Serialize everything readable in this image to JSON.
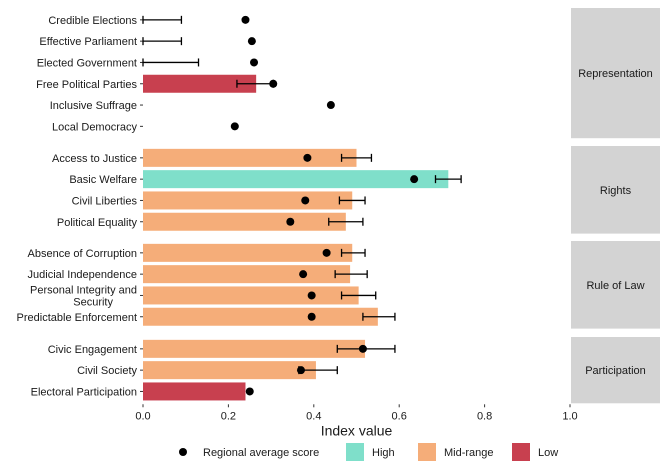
{
  "chart_data": {
    "type": "bar",
    "orientation": "horizontal",
    "xlabel": "Index value",
    "xlim": [
      0,
      1
    ],
    "xticks": [
      "0.0",
      "0.2",
      "0.4",
      "0.6",
      "0.8",
      "1.0"
    ],
    "grid": false,
    "legend": {
      "position": "bottom",
      "marker_label": "Regional average score",
      "fills": [
        {
          "label": "High",
          "color": "#7fdfca"
        },
        {
          "label": "Mid-range",
          "color": "#f5ad79"
        },
        {
          "label": "Low",
          "color": "#c8404f"
        }
      ]
    },
    "panels": [
      {
        "name": "Representation",
        "rows": [
          {
            "label": "Credible Elections",
            "value": null,
            "category": null,
            "err_low": 0.0,
            "err_high": 0.09,
            "regional_avg": 0.24
          },
          {
            "label": "Effective Parliament",
            "value": null,
            "category": null,
            "err_low": 0.0,
            "err_high": 0.09,
            "regional_avg": 0.255
          },
          {
            "label": "Elected Government",
            "value": null,
            "category": null,
            "err_low": 0.0,
            "err_high": 0.13,
            "regional_avg": 0.26
          },
          {
            "label": "Free Political Parties",
            "value": 0.265,
            "category": "Low",
            "err_low": 0.22,
            "err_high": 0.305,
            "regional_avg": 0.305
          },
          {
            "label": "Inclusive Suffrage",
            "value": null,
            "category": null,
            "err_low": null,
            "err_high": null,
            "regional_avg": 0.44
          },
          {
            "label": "Local Democracy",
            "value": null,
            "category": null,
            "err_low": null,
            "err_high": null,
            "regional_avg": 0.215
          }
        ]
      },
      {
        "name": "Rights",
        "rows": [
          {
            "label": "Access to Justice",
            "value": 0.5,
            "category": "Mid-range",
            "err_low": 0.465,
            "err_high": 0.535,
            "regional_avg": 0.385
          },
          {
            "label": "Basic Welfare",
            "value": 0.715,
            "category": "High",
            "err_low": 0.685,
            "err_high": 0.745,
            "regional_avg": 0.635
          },
          {
            "label": "Civil Liberties",
            "value": 0.49,
            "category": "Mid-range",
            "err_low": 0.46,
            "err_high": 0.52,
            "regional_avg": 0.38
          },
          {
            "label": "Political Equality",
            "value": 0.475,
            "category": "Mid-range",
            "err_low": 0.435,
            "err_high": 0.515,
            "regional_avg": 0.345
          }
        ]
      },
      {
        "name": "Rule of Law",
        "rows": [
          {
            "label": "Absence of Corruption",
            "value": 0.49,
            "category": "Mid-range",
            "err_low": 0.465,
            "err_high": 0.52,
            "regional_avg": 0.43
          },
          {
            "label": "Judicial Independence",
            "value": 0.485,
            "category": "Mid-range",
            "err_low": 0.45,
            "err_high": 0.525,
            "regional_avg": 0.375
          },
          {
            "label": "Personal Integrity and Security",
            "value": 0.505,
            "category": "Mid-range",
            "err_low": 0.465,
            "err_high": 0.545,
            "regional_avg": 0.395
          },
          {
            "label": "Predictable Enforcement",
            "value": 0.55,
            "category": "Mid-range",
            "err_low": 0.515,
            "err_high": 0.59,
            "regional_avg": 0.395
          }
        ]
      },
      {
        "name": "Participation",
        "rows": [
          {
            "label": "Civic Engagement",
            "value": 0.52,
            "category": "Mid-range",
            "err_low": 0.455,
            "err_high": 0.59,
            "regional_avg": 0.515
          },
          {
            "label": "Civil Society",
            "value": 0.405,
            "category": "Mid-range",
            "err_low": 0.365,
            "err_high": 0.455,
            "regional_avg": 0.37
          },
          {
            "label": "Electoral Participation",
            "value": 0.24,
            "category": "Low",
            "err_low": null,
            "err_high": null,
            "regional_avg": 0.25
          }
        ]
      }
    ]
  }
}
